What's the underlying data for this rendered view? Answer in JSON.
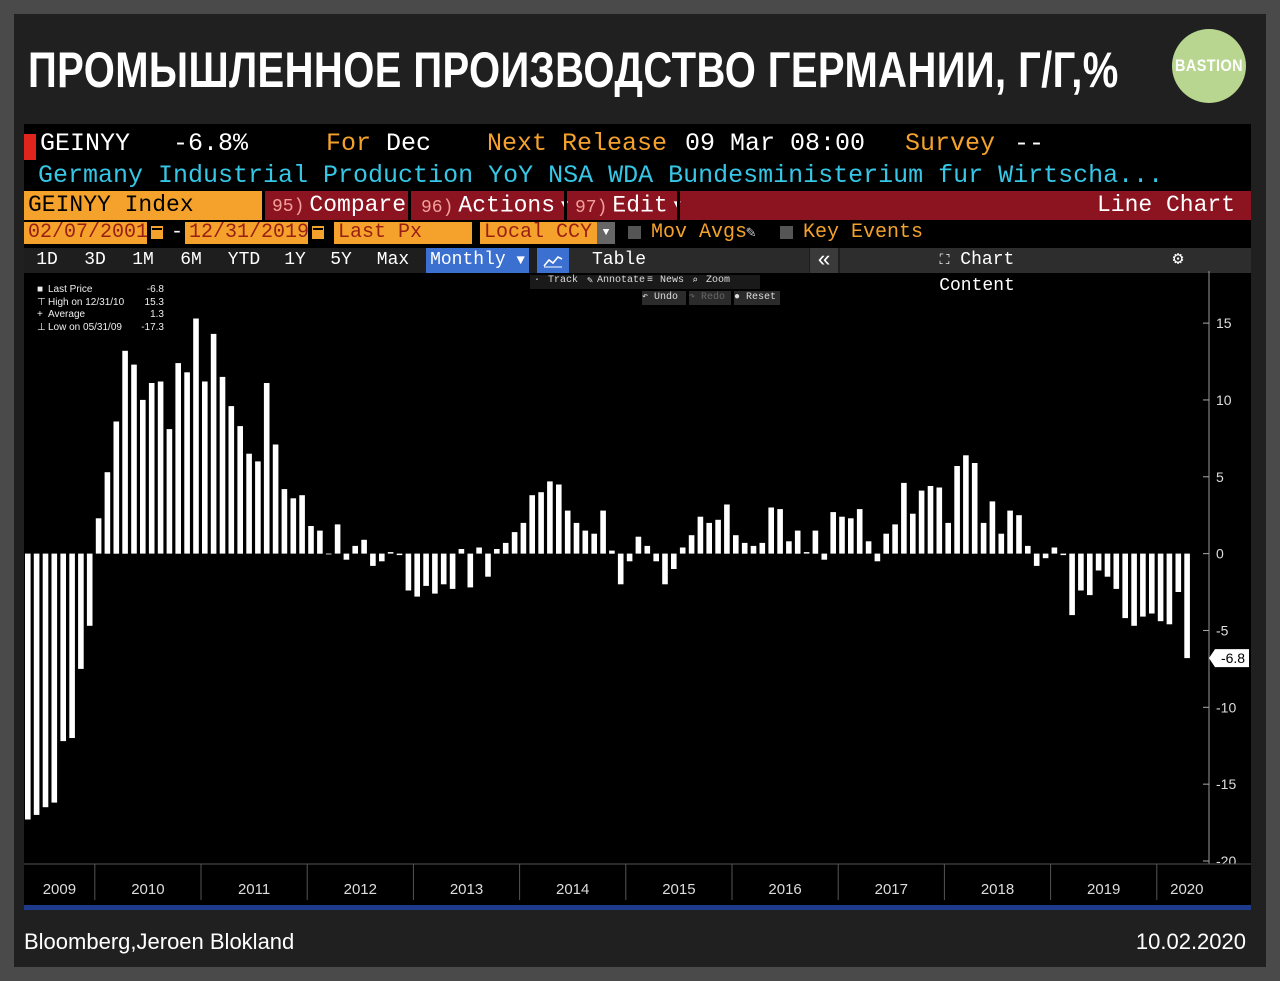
{
  "header": {
    "title": "ПРОМЫШЛЕННОЕ ПРОИЗВОДСТВО ГЕРМАНИИ, Г/Г,%",
    "logo_text": "BASTION"
  },
  "terminal": {
    "ticker": "GEINYY",
    "last_value": "-6.8%",
    "for_label": "For",
    "for_value": "Dec",
    "next_release_label": "Next Release",
    "next_release_value": "09 Mar 08:00",
    "survey_label": "Survey",
    "survey_value": "--",
    "description": "Germany Industrial Production YoY NSA WDA  Bundesministerium fur Wirtscha...",
    "index_label": "GEINYY Index",
    "compare_num": "95)",
    "compare_label": "Compare",
    "actions_num": "96)",
    "actions_label": "Actions",
    "edit_num": "97)",
    "edit_label": "Edit",
    "chart_type": "Line Chart",
    "start_date": "02/07/2001",
    "date_sep": "-",
    "end_date": "12/31/2019",
    "price_field": "Last Px",
    "currency": "Local CCY",
    "mov_avgs": "Mov Avgs",
    "key_events": "Key Events",
    "ranges": [
      "1D",
      "3D",
      "1M",
      "6M",
      "YTD",
      "1Y",
      "5Y",
      "Max"
    ],
    "frequency": "Monthly",
    "table_label": "Table",
    "collapse_glyph": "«",
    "chart_content": "Chart Content",
    "tools": {
      "track": "Track",
      "annotate": "Annotate",
      "news": "News",
      "zoom": "Zoom",
      "undo": "Undo",
      "redo": "Redo",
      "reset": "Reset"
    }
  },
  "legend": {
    "last_price_label": "Last Price",
    "last_price_value": "-6.8",
    "high_label": "High on 12/31/10",
    "high_value": "15.3",
    "average_label": "Average",
    "average_value": "1.3",
    "low_label": "Low on 05/31/09",
    "low_value": "-17.3"
  },
  "chart_data": {
    "type": "bar",
    "title": "",
    "xlabel": "",
    "ylabel": "",
    "ylim": [
      -20,
      18
    ],
    "yticks": [
      15,
      10,
      5,
      0,
      -5,
      -10,
      -15,
      -20
    ],
    "y_axis_side": "right",
    "grid": false,
    "year_labels": [
      "2009",
      "2010",
      "2011",
      "2012",
      "2013",
      "2014",
      "2015",
      "2016",
      "2017",
      "2018",
      "2019",
      "2020"
    ],
    "start_month": "2009-05",
    "values": [
      -17.3,
      -17.0,
      -16.5,
      -16.2,
      -12.2,
      -12.0,
      -7.5,
      -4.7,
      2.3,
      5.3,
      8.6,
      13.2,
      12.3,
      10.0,
      11.1,
      11.2,
      8.1,
      12.4,
      11.8,
      15.3,
      11.2,
      14.3,
      11.5,
      9.6,
      8.3,
      6.5,
      6.0,
      11.1,
      7.1,
      4.2,
      3.6,
      3.8,
      1.8,
      1.5,
      0.0,
      1.9,
      -0.4,
      0.5,
      0.9,
      -0.8,
      -0.5,
      0.1,
      -0.1,
      -2.4,
      -2.8,
      -2.1,
      -2.6,
      -2.0,
      -2.3,
      0.3,
      -2.2,
      0.4,
      -1.5,
      0.3,
      0.7,
      1.4,
      2.0,
      3.8,
      4.0,
      4.7,
      4.5,
      2.8,
      2.0,
      1.5,
      1.3,
      2.8,
      0.2,
      -2.0,
      -0.5,
      1.1,
      0.5,
      -0.5,
      -2.0,
      -1.0,
      0.4,
      1.2,
      2.4,
      2.0,
      2.2,
      3.2,
      1.2,
      0.7,
      0.5,
      0.7,
      3.0,
      2.9,
      0.8,
      1.5,
      0.1,
      1.5,
      -0.4,
      2.7,
      2.4,
      2.3,
      2.9,
      0.8,
      -0.5,
      1.3,
      1.9,
      4.6,
      2.6,
      4.1,
      4.4,
      4.3,
      2.0,
      5.7,
      6.4,
      5.9,
      2.0,
      3.4,
      1.3,
      2.8,
      2.5,
      0.5,
      -0.8,
      -0.3,
      0.4,
      -0.1,
      -4.0,
      -2.4,
      -2.7,
      -1.1,
      -1.5,
      -2.3,
      -4.2,
      -4.7,
      -4.1,
      -3.9,
      -4.4,
      -4.6,
      -2.5,
      -6.8
    ],
    "last_value": -6.8
  },
  "footer": {
    "source": "Bloomberg,Jeroen Blokland",
    "date": "10.02.2020"
  }
}
